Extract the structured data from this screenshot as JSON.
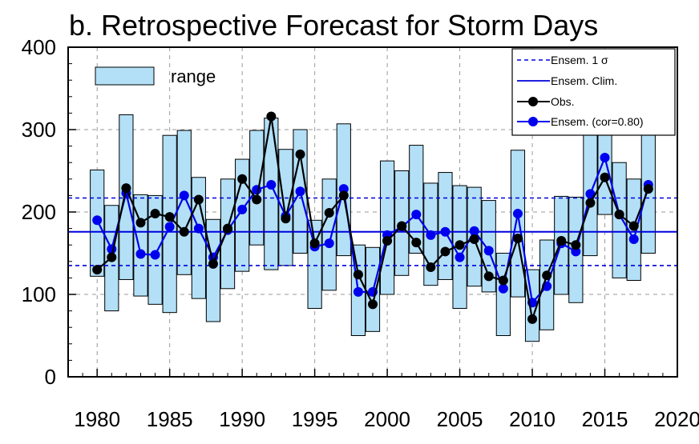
{
  "chart_data": {
    "type": "line",
    "title": "b. Retrospective Forecast for Storm Days",
    "xlabel": "",
    "ylabel": "",
    "xlim": [
      1978,
      2020
    ],
    "ylim": [
      0,
      400
    ],
    "xticks": [
      1980,
      1985,
      1990,
      1995,
      2000,
      2005,
      2010,
      2015,
      2020
    ],
    "yticks": [
      0,
      100,
      200,
      300,
      400
    ],
    "grid": true,
    "x": [
      1980,
      1981,
      1982,
      1983,
      1984,
      1985,
      1986,
      1987,
      1988,
      1989,
      1990,
      1991,
      1992,
      1993,
      1994,
      1995,
      1996,
      1997,
      1998,
      1999,
      2000,
      2001,
      2002,
      2003,
      2004,
      2005,
      2006,
      2007,
      2008,
      2009,
      2010,
      2011,
      2012,
      2013,
      2014,
      2015,
      2016,
      2017,
      2018
    ],
    "range": {
      "label": "range",
      "low": [
        122,
        80,
        118,
        98,
        88,
        78,
        124,
        95,
        67,
        107,
        128,
        160,
        130,
        135,
        150,
        83,
        105,
        147,
        50,
        55,
        100,
        123,
        150,
        111,
        118,
        83,
        110,
        103,
        50,
        97,
        43,
        57,
        100,
        90,
        147,
        197,
        120,
        117,
        150
      ],
      "high": [
        251,
        208,
        318,
        221,
        220,
        293,
        299,
        242,
        191,
        240,
        264,
        299,
        314,
        276,
        300,
        190,
        240,
        307,
        160,
        157,
        262,
        250,
        281,
        235,
        248,
        232,
        230,
        214,
        150,
        275,
        130,
        166,
        219,
        218,
        298,
        343,
        260,
        240,
        310
      ]
    },
    "series": [
      {
        "name": "Obs.",
        "color": "#000000",
        "values": [
          130,
          145,
          229,
          187,
          198,
          194,
          176,
          215,
          137,
          180,
          240,
          215,
          316,
          192,
          270,
          162,
          199,
          220,
          124,
          88,
          165,
          183,
          163,
          133,
          152,
          160,
          167,
          122,
          117,
          168,
          70,
          123,
          165,
          160,
          211,
          242,
          197,
          183,
          228
        ]
      },
      {
        "name": "Ensem. (cor=0.80)",
        "color": "#0000ee",
        "values": [
          190,
          155,
          223,
          149,
          148,
          182,
          220,
          180,
          145,
          178,
          203,
          227,
          233,
          195,
          225,
          158,
          162,
          228,
          103,
          103,
          172,
          182,
          197,
          172,
          176,
          145,
          177,
          153,
          107,
          198,
          90,
          110,
          162,
          152,
          222,
          266,
          197,
          167,
          233
        ]
      }
    ],
    "reference_lines": [
      {
        "name": "Ensem. 1 σ",
        "style": "dashed",
        "color": "#0000dd",
        "values": [
          217,
          135
        ]
      },
      {
        "name": "Ensem. Clim.",
        "style": "solid",
        "color": "#0000dd",
        "value": 176
      }
    ],
    "legend": {
      "placement": "top-right",
      "entries": [
        "Ensem. 1 σ",
        "Ensem. Clim.",
        "Obs.",
        "Ensem. (cor=0.80)"
      ]
    },
    "range_legend": {
      "placement": "top-left",
      "label": "range"
    },
    "colors": {
      "range_fill": "#b3e0f7",
      "grid": "#9a9a9a"
    }
  }
}
